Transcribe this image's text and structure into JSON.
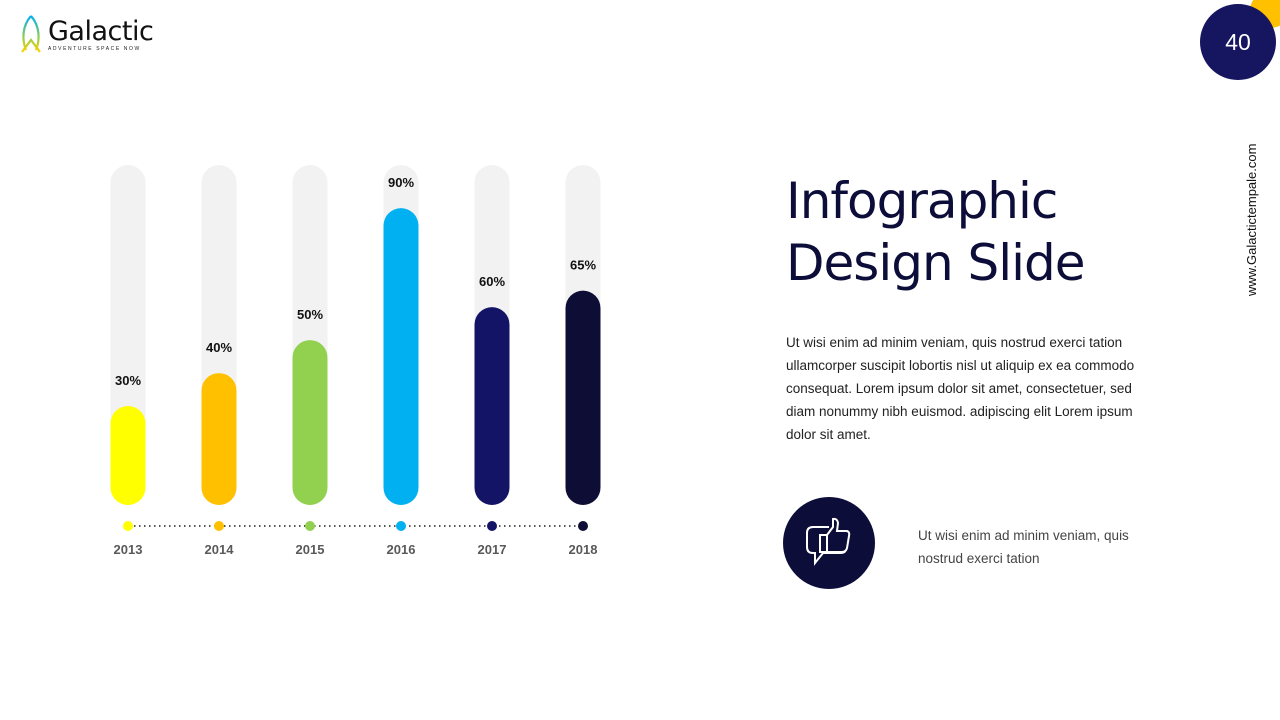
{
  "logo": {
    "name": "Galactic",
    "tagline": "ADVENTURE SPACE NOW"
  },
  "page_number": "40",
  "website": "www.Galactictempale.com",
  "title_line1": "Infographic",
  "title_line2": "Design Slide",
  "body_text": "Ut wisi enim ad minim veniam, quis nostrud exerci tation ullamcorper suscipit lobortis nisl ut aliquip ex ea commodo consequat. Lorem ipsum dolor sit amet, consectetuer, sed diam nonummy nibh euismod. adipiscing elit Lorem ipsum dolor sit amet.",
  "note_text": "Ut wisi enim ad minim veniam, quis nostrud exerci tation",
  "chart_data": {
    "type": "bar",
    "categories": [
      "2013",
      "2014",
      "2015",
      "2016",
      "2017",
      "2018"
    ],
    "values": [
      30,
      40,
      50,
      90,
      60,
      65
    ],
    "labels": [
      "30%",
      "40%",
      "50%",
      "90%",
      "60%",
      "65%"
    ],
    "colors": [
      "#ffff00",
      "#ffc000",
      "#92d050",
      "#00b0f0",
      "#141466",
      "#0d0d36"
    ],
    "track_color": "#f2f2f2",
    "ylim": [
      0,
      100
    ],
    "title": "",
    "xlabel": "",
    "ylabel": ""
  }
}
